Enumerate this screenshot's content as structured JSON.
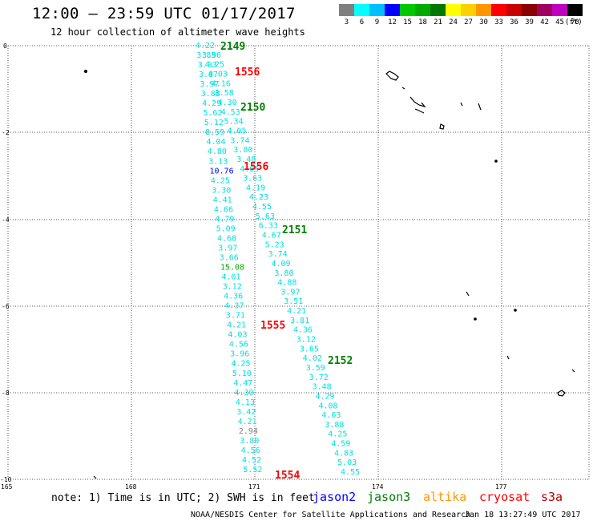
{
  "header": {
    "title": "12:00 — 23:59 UTC 01/17/2017",
    "subtitle": "12 hour collection of altimeter wave heights"
  },
  "legend": {
    "unit": "(ft)",
    "bins": [
      {
        "label": "3",
        "color": "#808080"
      },
      {
        "label": "6",
        "color": "#00ffff"
      },
      {
        "label": "9",
        "color": "#00bfff"
      },
      {
        "label": "12",
        "color": "#0000ff"
      },
      {
        "label": "15",
        "color": "#00c800"
      },
      {
        "label": "18",
        "color": "#00aa00"
      },
      {
        "label": "21",
        "color": "#007800"
      },
      {
        "label": "24",
        "color": "#ffff00"
      },
      {
        "label": "27",
        "color": "#ffd000"
      },
      {
        "label": "30",
        "color": "#ff9600"
      },
      {
        "label": "33",
        "color": "#ff0000"
      },
      {
        "label": "36",
        "color": "#c80000"
      },
      {
        "label": "39",
        "color": "#8b0000"
      },
      {
        "label": "42",
        "color": "#a00060"
      },
      {
        "label": "45",
        "color": "#c000c0"
      },
      {
        "label": "70",
        "color": "#000000"
      }
    ]
  },
  "axes": {
    "lat_labels": [
      "0",
      "-2",
      "-4",
      "-6",
      "-8",
      "-10"
    ],
    "lon_labels": [
      "165",
      "168",
      "171",
      "174",
      "177"
    ]
  },
  "passes": [
    {
      "label": "2149",
      "color": "#008000"
    },
    {
      "label": "1556",
      "color": "#ff0000"
    },
    {
      "label": "2150",
      "color": "#008000"
    },
    {
      "label": "1556",
      "color": "#ff0000"
    },
    {
      "label": "2151",
      "color": "#008000"
    },
    {
      "label": "1555",
      "color": "#ff0000"
    },
    {
      "label": "2152",
      "color": "#008000"
    },
    {
      "label": "1554",
      "color": "#ff0000"
    }
  ],
  "wave_heights": {
    "track_a": [
      {
        "v": "4.22",
        "c": "#00e0e0"
      },
      {
        "v": "3.96",
        "c": "#00e0e0"
      },
      {
        "v": "3.85",
        "c": "#00e0e0"
      },
      {
        "v": "4.25",
        "c": "#00e0e0"
      },
      {
        "v": "3.93",
        "c": "#00e0e0"
      },
      {
        "v": "4.03",
        "c": "#00e0e0"
      },
      {
        "v": "3.87",
        "c": "#00e0e0"
      },
      {
        "v": "4.16",
        "c": "#00e0e0"
      },
      {
        "v": "3.97",
        "c": "#00e0e0"
      },
      {
        "v": "3.58",
        "c": "#00e0e0"
      },
      {
        "v": "3.88",
        "c": "#00e0e0"
      },
      {
        "v": "4.30",
        "c": "#00e0e0"
      },
      {
        "v": "4.29",
        "c": "#00e0e0"
      },
      {
        "v": "4.53",
        "c": "#00e0e0"
      },
      {
        "v": "5.62",
        "c": "#00e0e0"
      },
      {
        "v": "5.34",
        "c": "#00e0e0"
      },
      {
        "v": "5.12",
        "c": "#00e0e0"
      },
      {
        "v": "4.05",
        "c": "#00e0e0"
      },
      {
        "v": "8.59",
        "c": "#00e0e0"
      },
      {
        "v": "3.74",
        "c": "#00e0e0"
      },
      {
        "v": "4.04",
        "c": "#00e0e0"
      },
      {
        "v": "3.80",
        "c": "#00e0e0"
      },
      {
        "v": "4.80",
        "c": "#00e0e0"
      },
      {
        "v": "3.48",
        "c": "#00e0e0"
      },
      {
        "v": "3.13",
        "c": "#00e0e0"
      },
      {
        "v": "4.05",
        "c": "#00e0e0"
      },
      {
        "v": "10.76",
        "c": "#0000ff"
      },
      {
        "v": "3.63",
        "c": "#00e0e0"
      },
      {
        "v": "4.25",
        "c": "#00e0e0"
      },
      {
        "v": "4.19",
        "c": "#00e0e0"
      },
      {
        "v": "3.30",
        "c": "#00e0e0"
      },
      {
        "v": "4.23",
        "c": "#00e0e0"
      },
      {
        "v": "4.41",
        "c": "#00e0e0"
      },
      {
        "v": "4.55",
        "c": "#00e0e0"
      },
      {
        "v": "4.66",
        "c": "#00e0e0"
      },
      {
        "v": "5.63",
        "c": "#00e0e0"
      },
      {
        "v": "4.79",
        "c": "#00e0e0"
      },
      {
        "v": "6.33",
        "c": "#00e0e0"
      },
      {
        "v": "5.09",
        "c": "#00e0e0"
      },
      {
        "v": "4.67",
        "c": "#00e0e0"
      },
      {
        "v": "4.68",
        "c": "#00e0e0"
      },
      {
        "v": "5.23",
        "c": "#00e0e0"
      },
      {
        "v": "3.97",
        "c": "#00e0e0"
      },
      {
        "v": "3.74",
        "c": "#00e0e0"
      },
      {
        "v": "3.66",
        "c": "#00e0e0"
      },
      {
        "v": "4.09",
        "c": "#00e0e0"
      },
      {
        "v": "15.08",
        "c": "#00aa00"
      },
      {
        "v": "3.80",
        "c": "#00e0e0"
      },
      {
        "v": "4.01",
        "c": "#00e0e0"
      },
      {
        "v": "4.88",
        "c": "#00e0e0"
      },
      {
        "v": "3.12",
        "c": "#00e0e0"
      },
      {
        "v": "3.97",
        "c": "#00e0e0"
      },
      {
        "v": "4.36",
        "c": "#00e0e0"
      },
      {
        "v": "3.51",
        "c": "#00e0e0"
      },
      {
        "v": "4.37",
        "c": "#00e0e0"
      },
      {
        "v": "4.21",
        "c": "#00e0e0"
      },
      {
        "v": "3.71",
        "c": "#00e0e0"
      },
      {
        "v": "3.81",
        "c": "#00e0e0"
      },
      {
        "v": "4.21",
        "c": "#00e0e0"
      },
      {
        "v": "4.36",
        "c": "#00e0e0"
      },
      {
        "v": "4.03",
        "c": "#00e0e0"
      },
      {
        "v": "3.12",
        "c": "#00e0e0"
      },
      {
        "v": "4.56",
        "c": "#00e0e0"
      },
      {
        "v": "3.65",
        "c": "#00e0e0"
      },
      {
        "v": "3.96",
        "c": "#00e0e0"
      },
      {
        "v": "4.02",
        "c": "#00e0e0"
      },
      {
        "v": "4.25",
        "c": "#00e0e0"
      },
      {
        "v": "3.59",
        "c": "#00e0e0"
      },
      {
        "v": "5.10",
        "c": "#00e0e0"
      },
      {
        "v": "3.72",
        "c": "#00e0e0"
      },
      {
        "v": "4.47",
        "c": "#00e0e0"
      },
      {
        "v": "3.48",
        "c": "#00e0e0"
      },
      {
        "v": "4.30",
        "c": "#00e0e0"
      },
      {
        "v": "4.29",
        "c": "#00e0e0"
      },
      {
        "v": "4.13",
        "c": "#00e0e0"
      },
      {
        "v": "4.08",
        "c": "#00e0e0"
      },
      {
        "v": "3.42",
        "c": "#00e0e0"
      },
      {
        "v": "4.63",
        "c": "#00e0e0"
      },
      {
        "v": "4.21",
        "c": "#00e0e0"
      },
      {
        "v": "3.88",
        "c": "#00e0e0"
      },
      {
        "v": "2.94",
        "c": "#808080"
      },
      {
        "v": "4.25",
        "c": "#00e0e0"
      },
      {
        "v": "3.80",
        "c": "#00e0e0"
      },
      {
        "v": "4.59",
        "c": "#00e0e0"
      },
      {
        "v": "4.56",
        "c": "#00e0e0"
      },
      {
        "v": "4.83",
        "c": "#00e0e0"
      },
      {
        "v": "4.52",
        "c": "#00e0e0"
      },
      {
        "v": "5.03",
        "c": "#00e0e0"
      },
      {
        "v": "5.52",
        "c": "#00e0e0"
      },
      {
        "v": "4.55",
        "c": "#00e0e0"
      }
    ]
  },
  "footer": {
    "note": "note: 1) Time is in UTC; 2) SWH is in feet",
    "missions": [
      {
        "name": "jason2",
        "color": "#0000ff"
      },
      {
        "name": "jason3",
        "color": "#008000"
      },
      {
        "name": "altika",
        "color": "#ff9600"
      },
      {
        "name": "cryosat",
        "color": "#ff0000"
      },
      {
        "name": "s3a",
        "color": "#b00000"
      }
    ],
    "credit": "NOAA/NESDIS Center for Satellite Applications and Research",
    "timestamp": "Jan 18 13:27:49 UTC 2017"
  }
}
